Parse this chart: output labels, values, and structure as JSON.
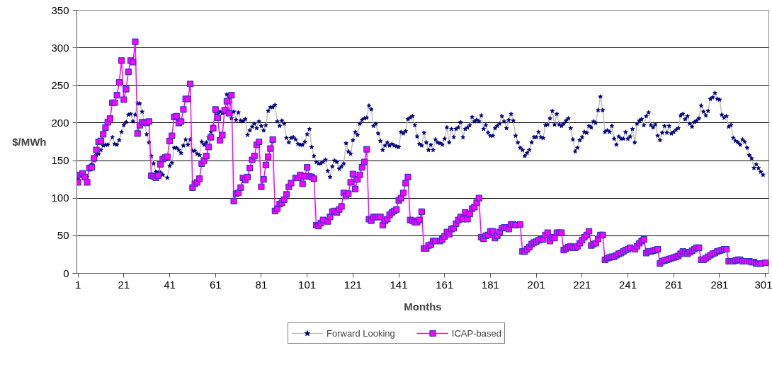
{
  "chart_data": {
    "type": "line",
    "xlabel": "Months",
    "ylabel": "$/MWh",
    "xlim": [
      0.5,
      302.5
    ],
    "xticks": [
      1,
      21,
      41,
      61,
      81,
      101,
      121,
      141,
      161,
      181,
      201,
      221,
      241,
      261,
      281,
      301
    ],
    "ylim": [
      0,
      350
    ],
    "yticks": [
      0,
      50,
      100,
      150,
      200,
      250,
      300,
      350
    ],
    "grid": "y",
    "legend": "bottom",
    "series": [
      {
        "name": "Forward Looking",
        "color": "#c0c0c0",
        "marker": "star",
        "x": [
          1,
          2,
          3,
          4,
          5,
          6,
          7,
          8,
          9,
          10,
          11,
          12,
          13,
          14,
          16,
          17,
          18,
          19,
          20,
          21,
          22,
          23,
          24,
          25,
          26,
          27,
          28,
          29,
          31,
          32,
          33,
          34,
          35,
          36,
          37,
          38,
          40,
          41,
          42,
          43,
          44,
          45,
          46,
          47,
          48,
          49,
          50,
          51,
          52,
          53,
          54,
          55,
          56,
          57,
          58,
          59,
          60,
          61,
          62,
          63,
          64,
          65,
          66,
          67,
          68,
          69,
          70,
          71,
          72,
          73,
          74,
          75,
          76,
          77,
          78,
          79,
          80,
          81,
          82,
          83,
          84,
          85,
          86,
          87,
          88,
          89,
          90,
          91,
          92,
          93,
          94,
          95,
          96,
          97,
          98,
          99,
          100,
          101,
          102,
          103,
          104,
          105,
          106,
          107,
          108,
          109,
          110,
          111,
          112,
          113,
          114,
          115,
          116,
          117,
          118,
          119,
          120,
          121,
          122,
          123,
          124,
          125,
          126,
          127,
          128,
          129,
          130,
          131,
          132,
          133,
          134,
          135,
          136,
          137,
          138,
          139,
          140,
          141,
          142,
          143,
          144,
          145,
          146,
          147,
          148,
          149,
          150,
          151,
          152,
          153,
          154,
          155,
          156,
          157,
          158,
          159,
          160,
          161,
          162,
          163,
          164,
          165,
          166,
          167,
          168,
          169,
          170,
          171,
          172,
          173,
          174,
          175,
          176,
          177,
          178,
          179,
          180,
          181,
          182,
          183,
          184,
          185,
          186,
          187,
          188,
          189,
          190,
          191,
          192,
          193,
          194,
          195,
          196,
          197,
          198,
          199,
          200,
          201,
          202,
          203,
          204,
          205,
          206,
          207,
          208,
          209,
          210,
          211,
          212,
          213,
          214,
          215,
          216,
          217,
          218,
          219,
          220,
          221,
          222,
          223,
          224,
          225,
          226,
          227,
          228,
          229,
          230,
          231,
          232,
          233,
          234,
          235,
          236,
          237,
          238,
          239,
          240,
          241,
          242,
          243,
          244,
          245,
          246,
          247,
          248,
          249,
          250,
          251,
          252,
          253,
          254,
          255,
          256,
          257,
          258,
          259,
          260,
          261,
          262,
          263,
          264,
          265,
          266,
          267,
          268,
          269,
          270,
          271,
          272,
          273,
          274,
          275,
          276,
          277,
          278,
          279,
          280,
          281,
          282,
          283,
          284,
          285,
          286,
          287,
          288,
          289,
          290,
          291,
          292,
          293,
          294,
          295,
          296,
          297,
          298,
          299,
          300
        ],
        "values": [
          125,
          130,
          133,
          130,
          128,
          138,
          145,
          150,
          157,
          159,
          164,
          170,
          171,
          171,
          181,
          172,
          171,
          177,
          188,
          197,
          201,
          211,
          212,
          202,
          211,
          226,
          226,
          215,
          185,
          174,
          156,
          146,
          135,
          134,
          134,
          131,
          127,
          143,
          147,
          167,
          167,
          164,
          160,
          170,
          178,
          171,
          178,
          163,
          163,
          159,
          157,
          175,
          171,
          174,
          181,
          188,
          196,
          213,
          212,
          215,
          213,
          214,
          238,
          234,
          206,
          215,
          204,
          214,
          203,
          202,
          205,
          184,
          190,
          195,
          199,
          193,
          202,
          196,
          190,
          197,
          216,
          221,
          221,
          224,
          202,
          196,
          203,
          199,
          180,
          174,
          180,
          181,
          178,
          172,
          171,
          171,
          175,
          185,
          192,
          168,
          156,
          148,
          146,
          146,
          148,
          151,
          136,
          128,
          142,
          150,
          148,
          139,
          142,
          146,
          173,
          162,
          159,
          177,
          188,
          184,
          199,
          204,
          206,
          207,
          223,
          218,
          196,
          199,
          186,
          176,
          164,
          170,
          174,
          170,
          172,
          170,
          169,
          168,
          188,
          186,
          189,
          205,
          207,
          209,
          197,
          182,
          172,
          170,
          187,
          174,
          164,
          171,
          164,
          178,
          174,
          173,
          171,
          179,
          194,
          174,
          192,
          181,
          192,
          194,
          201,
          181,
          192,
          194,
          197,
          208,
          202,
          204,
          202,
          210,
          192,
          197,
          187,
          183,
          183,
          193,
          196,
          199,
          209,
          202,
          193,
          204,
          212,
          203,
          183,
          174,
          167,
          164,
          156,
          160,
          164,
          174,
          181,
          181,
          188,
          181,
          180,
          197,
          198,
          206,
          216,
          198,
          212,
          198,
          196,
          199,
          203,
          206,
          193,
          178,
          162,
          167,
          177,
          181,
          188,
          187,
          196,
          194,
          202,
          200,
          217,
          235,
          217,
          188,
          190,
          188,
          196,
          179,
          171,
          182,
          179,
          179,
          188,
          179,
          182,
          192,
          174,
          199,
          203,
          205,
          197,
          209,
          214,
          197,
          194,
          198,
          183,
          177,
          187,
          196,
          187,
          196,
          186,
          188,
          191,
          193,
          210,
          212,
          205,
          209,
          199,
          195,
          201,
          203,
          206,
          223,
          215,
          210,
          216,
          232,
          234,
          240,
          232,
          231,
          211,
          207,
          209,
          195,
          197,
          180,
          176,
          174,
          171,
          178,
          175,
          167,
          157,
          153,
          140,
          145,
          140,
          135,
          131
        ]
      },
      {
        "name": "ICAP-based",
        "color": "#ff00ff",
        "marker": "square",
        "x": [
          1,
          2,
          3,
          4,
          5,
          6,
          7,
          8,
          9,
          10,
          11,
          12,
          13,
          14,
          15,
          16,
          17,
          18,
          19,
          20,
          21,
          22,
          23,
          24,
          25,
          26,
          27,
          28,
          29,
          30,
          31,
          32,
          33,
          34,
          35,
          36,
          37,
          38,
          39,
          40,
          41,
          42,
          43,
          44,
          45,
          46,
          47,
          48,
          49,
          50,
          51,
          52,
          53,
          54,
          55,
          56,
          57,
          58,
          59,
          60,
          61,
          62,
          63,
          64,
          65,
          66,
          67,
          68,
          69,
          70,
          71,
          72,
          73,
          74,
          75,
          76,
          77,
          78,
          79,
          80,
          81,
          82,
          83,
          84,
          85,
          86,
          87,
          88,
          89,
          90,
          91,
          92,
          93,
          94,
          96,
          97,
          98,
          99,
          100,
          101,
          102,
          103,
          104,
          105,
          106,
          107,
          108,
          110,
          111,
          112,
          113,
          114,
          115,
          116,
          117,
          118,
          119,
          120,
          121,
          122,
          123,
          124,
          125,
          126,
          127,
          128,
          129,
          130,
          131,
          132,
          133,
          134,
          135,
          136,
          137,
          138,
          139,
          140,
          141,
          142,
          143,
          144,
          145,
          146,
          147,
          148,
          149,
          150,
          151,
          152,
          153,
          154,
          155,
          156,
          157,
          159,
          160,
          161,
          162,
          163,
          164,
          165,
          166,
          167,
          168,
          169,
          170,
          171,
          172,
          173,
          174,
          175,
          176,
          177,
          178,
          179,
          180,
          181,
          182,
          183,
          184,
          185,
          186,
          187,
          188,
          189,
          190,
          191,
          192,
          194,
          195,
          196,
          197,
          198,
          199,
          200,
          201,
          202,
          203,
          204,
          205,
          206,
          207,
          208,
          209,
          210,
          211,
          212,
          213,
          214,
          215,
          216,
          217,
          218,
          219,
          220,
          221,
          222,
          223,
          224,
          225,
          226,
          227,
          228,
          229,
          230,
          231,
          232,
          233,
          234,
          235,
          236,
          237,
          238,
          239,
          240,
          241,
          242,
          244,
          245,
          246,
          247,
          248,
          249,
          250,
          251,
          252,
          253,
          254,
          255,
          256,
          257,
          258,
          259,
          260,
          261,
          262,
          263,
          264,
          265,
          266,
          267,
          268,
          269,
          270,
          271,
          272,
          273,
          274,
          275,
          276,
          277,
          278,
          279,
          280,
          281,
          282,
          283,
          284,
          285,
          286,
          287,
          288,
          289,
          290,
          291,
          292,
          293,
          294,
          295,
          296,
          297,
          298,
          299,
          301
        ],
        "values": [
          121,
          131,
          133,
          128,
          121,
          140,
          141,
          153,
          164,
          175,
          176,
          185,
          194,
          201,
          206,
          227,
          227,
          237,
          254,
          283,
          231,
          245,
          268,
          283,
          281,
          308,
          186,
          197,
          201,
          201,
          200,
          202,
          130,
          129,
          127,
          130,
          145,
          152,
          154,
          155,
          176,
          183,
          208,
          209,
          200,
          202,
          218,
          232,
          232,
          252,
          114,
          119,
          121,
          126,
          146,
          150,
          156,
          168,
          181,
          193,
          218,
          207,
          177,
          184,
          217,
          229,
          213,
          237,
          96,
          106,
          107,
          114,
          127,
          124,
          128,
          140,
          151,
          156,
          171,
          175,
          115,
          125,
          144,
          155,
          166,
          178,
          83,
          86,
          92,
          94,
          98,
          105,
          115,
          120,
          127,
          127,
          131,
          119,
          129,
          141,
          129,
          128,
          126,
          64,
          63,
          67,
          71,
          69,
          75,
          82,
          83,
          81,
          85,
          89,
          107,
          103,
          106,
          121,
          132,
          112,
          125,
          131,
          141,
          148,
          165,
          72,
          70,
          75,
          75,
          75,
          75,
          64,
          70,
          72,
          78,
          81,
          83,
          85,
          97,
          100,
          107,
          120,
          128,
          71,
          70,
          68,
          68,
          71,
          82,
          33,
          33,
          37,
          38,
          43,
          43,
          43,
          45,
          49,
          55,
          52,
          59,
          60,
          66,
          71,
          75,
          72,
          81,
          72,
          79,
          86,
          88,
          94,
          100,
          48,
          46,
          50,
          51,
          56,
          56,
          47,
          50,
          55,
          60,
          61,
          61,
          59,
          65,
          65,
          64,
          65,
          29,
          29,
          32,
          35,
          39,
          41,
          42,
          44,
          45,
          45,
          51,
          54,
          43,
          48,
          47,
          54,
          54,
          54,
          31,
          33,
          35,
          36,
          34,
          34,
          36,
          40,
          44,
          48,
          51,
          56,
          37,
          39,
          40,
          46,
          51,
          51,
          18,
          20,
          21,
          22,
          22,
          24,
          26,
          27,
          29,
          31,
          32,
          34,
          32,
          36,
          40,
          43,
          45,
          27,
          29,
          29,
          30,
          31,
          32,
          13,
          16,
          17,
          18,
          19,
          20,
          21,
          22,
          23,
          26,
          29,
          28,
          26,
          28,
          30,
          32,
          34,
          34,
          18,
          18,
          20,
          22,
          24,
          26,
          27,
          29,
          30,
          31,
          32,
          32,
          16,
          16,
          16,
          17,
          18,
          18,
          16,
          16,
          16,
          16,
          15,
          15,
          13,
          13,
          13,
          14
        ]
      }
    ]
  }
}
